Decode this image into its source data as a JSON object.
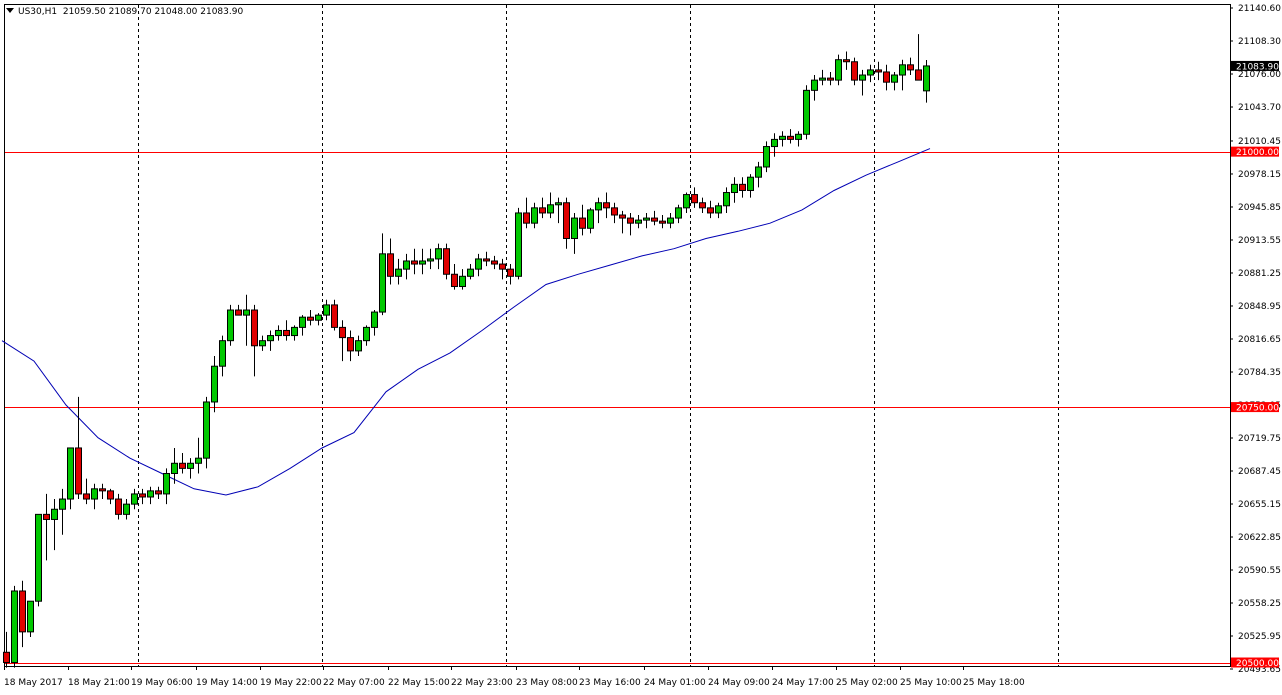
{
  "header": {
    "symbol": "US30,H1",
    "ohlc": "21059.50 21089.70 21048.00 21083.90"
  },
  "chart_data": {
    "type": "candlestick",
    "ylim": [
      20493.65,
      21140.6
    ],
    "grid": false,
    "y_ticks": [
      "21140.60",
      "21108.30",
      "21076.00",
      "21043.70",
      "21010.45",
      "20978.15",
      "20945.85",
      "20913.55",
      "20881.25",
      "20848.95",
      "20816.65",
      "20784.35",
      "20752.05",
      "20719.75",
      "20687.45",
      "20655.15",
      "20622.85",
      "20590.55",
      "20558.25",
      "20525.95",
      "20493.65"
    ],
    "x_labels": [
      "18 May 2017",
      "18 May 21:00",
      "19 May 06:00",
      "19 May 14:00",
      "19 May 22:00",
      "22 May 07:00",
      "22 May 15:00",
      "22 May 23:00",
      "23 May 08:00",
      "23 May 16:00",
      "24 May 01:00",
      "24 May 09:00",
      "24 May 17:00",
      "25 May 02:00",
      "25 May 10:00",
      "25 May 18:00"
    ],
    "horizontal_levels": [
      {
        "value": 21000.0,
        "label": "21000.00",
        "color": "#ff0000"
      },
      {
        "value": 20750.0,
        "label": "20750.00",
        "color": "#ff0000"
      },
      {
        "value": 20500.0,
        "label": "20500.00",
        "color": "#ff0000"
      }
    ],
    "current_price": {
      "value": 21083.9,
      "label": "21083.90"
    },
    "bull_color": "#00c800",
    "bear_color": "#e00000",
    "ma_color": "#0000b4",
    "candles": [
      [
        20510,
        20530,
        20495,
        20500
      ],
      [
        20500,
        20575,
        20495,
        20570
      ],
      [
        20570,
        20580,
        20515,
        20530
      ],
      [
        20530,
        20560,
        20525,
        20560
      ],
      [
        20560,
        20645,
        20555,
        20645
      ],
      [
        20645,
        20665,
        20600,
        20640
      ],
      [
        20640,
        20660,
        20610,
        20650
      ],
      [
        20650,
        20670,
        20625,
        20660
      ],
      [
        20660,
        20710,
        20650,
        20710
      ],
      [
        20710,
        20760,
        20660,
        20665
      ],
      [
        20665,
        20680,
        20655,
        20660
      ],
      [
        20660,
        20675,
        20650,
        20670
      ],
      [
        20670,
        20675,
        20660,
        20668
      ],
      [
        20668,
        20670,
        20655,
        20660
      ],
      [
        20660,
        20665,
        20640,
        20645
      ],
      [
        20645,
        20660,
        20640,
        20655
      ],
      [
        20655,
        20670,
        20650,
        20665
      ],
      [
        20665,
        20670,
        20655,
        20662
      ],
      [
        20662,
        20672,
        20655,
        20668
      ],
      [
        20668,
        20672,
        20660,
        20665
      ],
      [
        20665,
        20690,
        20655,
        20685
      ],
      [
        20685,
        20710,
        20675,
        20695
      ],
      [
        20695,
        20705,
        20685,
        20690
      ],
      [
        20690,
        20700,
        20680,
        20695
      ],
      [
        20695,
        20720,
        20685,
        20700
      ],
      [
        20700,
        20760,
        20690,
        20755
      ],
      [
        20755,
        20800,
        20745,
        20790
      ],
      [
        20790,
        20820,
        20780,
        20815
      ],
      [
        20815,
        20850,
        20810,
        20845
      ],
      [
        20845,
        20850,
        20840,
        20840
      ],
      [
        20840,
        20860,
        20810,
        20845
      ],
      [
        20845,
        20850,
        20780,
        20810
      ],
      [
        20810,
        20820,
        20805,
        20815
      ],
      [
        20815,
        20825,
        20805,
        20820
      ],
      [
        20820,
        20830,
        20815,
        20825
      ],
      [
        20825,
        20835,
        20815,
        20820
      ],
      [
        20820,
        20830,
        20815,
        20828
      ],
      [
        20828,
        20840,
        20820,
        20838
      ],
      [
        20838,
        20845,
        20830,
        20835
      ],
      [
        20835,
        20842,
        20830,
        20840
      ],
      [
        20840,
        20855,
        20835,
        20850
      ],
      [
        20850,
        20855,
        20825,
        20828
      ],
      [
        20828,
        20835,
        20795,
        20818
      ],
      [
        20818,
        20825,
        20795,
        20805
      ],
      [
        20805,
        20820,
        20800,
        20815
      ],
      [
        20815,
        20830,
        20810,
        20828
      ],
      [
        20828,
        20845,
        20820,
        20843
      ],
      [
        20843,
        20920,
        20840,
        20900
      ],
      [
        20900,
        20915,
        20870,
        20878
      ],
      [
        20878,
        20895,
        20870,
        20885
      ],
      [
        20885,
        20900,
        20875,
        20893
      ],
      [
        20893,
        20905,
        20880,
        20890
      ],
      [
        20890,
        20905,
        20880,
        20893
      ],
      [
        20893,
        20905,
        20885,
        20895
      ],
      [
        20895,
        20910,
        20885,
        20905
      ],
      [
        20905,
        20910,
        20875,
        20880
      ],
      [
        20880,
        20890,
        20865,
        20868
      ],
      [
        20868,
        20885,
        20865,
        20878
      ],
      [
        20878,
        20890,
        20875,
        20885
      ],
      [
        20885,
        20900,
        20878,
        20895
      ],
      [
        20895,
        20902,
        20888,
        20893
      ],
      [
        20893,
        20898,
        20885,
        20890
      ],
      [
        20890,
        20895,
        20875,
        20885
      ],
      [
        20885,
        20890,
        20870,
        20878
      ],
      [
        20878,
        20945,
        20875,
        20940
      ],
      [
        20940,
        20955,
        20925,
        20930
      ],
      [
        20930,
        20950,
        20925,
        20945
      ],
      [
        20945,
        20955,
        20935,
        20940
      ],
      [
        20940,
        20960,
        20935,
        20948
      ],
      [
        20948,
        20955,
        20930,
        20950
      ],
      [
        20950,
        20955,
        20905,
        20915
      ],
      [
        20915,
        20940,
        20900,
        20935
      ],
      [
        20935,
        20948,
        20918,
        20925
      ],
      [
        20925,
        20945,
        20920,
        20943
      ],
      [
        20943,
        20955,
        20930,
        20950
      ],
      [
        20950,
        20960,
        20935,
        20945
      ],
      [
        20945,
        20950,
        20930,
        20938
      ],
      [
        20938,
        20942,
        20920,
        20935
      ],
      [
        20935,
        20940,
        20918,
        20930
      ],
      [
        20930,
        20938,
        20925,
        20933
      ],
      [
        20933,
        20940,
        20925,
        20935
      ],
      [
        20935,
        20942,
        20928,
        20932
      ],
      [
        20932,
        20938,
        20925,
        20930
      ],
      [
        20930,
        20940,
        20925,
        20935
      ],
      [
        20935,
        20948,
        20930,
        20945
      ],
      [
        20945,
        20960,
        20940,
        20958
      ],
      [
        20958,
        20965,
        20945,
        20950
      ],
      [
        20950,
        20955,
        20940,
        20945
      ],
      [
        20945,
        20952,
        20935,
        20940
      ],
      [
        20940,
        20950,
        20935,
        20947
      ],
      [
        20947,
        20965,
        20940,
        20960
      ],
      [
        20960,
        20975,
        20950,
        20968
      ],
      [
        20968,
        20975,
        20955,
        20962
      ],
      [
        20962,
        20978,
        20955,
        20975
      ],
      [
        20975,
        20990,
        20965,
        20985
      ],
      [
        20985,
        21010,
        20980,
        21005
      ],
      [
        21005,
        21018,
        20995,
        21012
      ],
      [
        21012,
        21020,
        21005,
        21015
      ],
      [
        21015,
        21022,
        21008,
        21012
      ],
      [
        21012,
        21020,
        21005,
        21017
      ],
      [
        21017,
        21065,
        21012,
        21060
      ],
      [
        21060,
        21075,
        21050,
        21070
      ],
      [
        21070,
        21080,
        21065,
        21072
      ],
      [
        21072,
        21078,
        21065,
        21070
      ],
      [
        21070,
        21095,
        21065,
        21090
      ],
      [
        21090,
        21098,
        21080,
        21088
      ],
      [
        21088,
        21092,
        21065,
        21070
      ],
      [
        21070,
        21080,
        21055,
        21075
      ],
      [
        21075,
        21085,
        21068,
        21080
      ],
      [
        21080,
        21088,
        21070,
        21078
      ],
      [
        21078,
        21085,
        21060,
        21068
      ],
      [
        21068,
        21078,
        21060,
        21075
      ],
      [
        21075,
        21090,
        21060,
        21085
      ],
      [
        21085,
        21092,
        21075,
        21080
      ],
      [
        21080,
        21115,
        21070,
        21070
      ],
      [
        21059.5,
        21089.7,
        21048,
        21083.9
      ]
    ],
    "ma": [
      [
        -0.5,
        20815
      ],
      [
        3.5,
        20795
      ],
      [
        7.5,
        20752
      ],
      [
        11.5,
        20720
      ],
      [
        15.5,
        20700
      ],
      [
        19.5,
        20685
      ],
      [
        23.5,
        20670
      ],
      [
        27.5,
        20664
      ],
      [
        31.5,
        20672
      ],
      [
        35.5,
        20690
      ],
      [
        39.5,
        20710
      ],
      [
        43.5,
        20725
      ],
      [
        47.5,
        20765
      ],
      [
        51.5,
        20787
      ],
      [
        55.5,
        20803
      ],
      [
        59.5,
        20825
      ],
      [
        63.5,
        20848
      ],
      [
        67.5,
        20870
      ],
      [
        71.5,
        20880
      ],
      [
        75.5,
        20889
      ],
      [
        79.5,
        20898
      ],
      [
        83.5,
        20905
      ],
      [
        87.5,
        20915
      ],
      [
        91.5,
        20922
      ],
      [
        95.5,
        20930
      ],
      [
        99.5,
        20943
      ],
      [
        103.5,
        20962
      ],
      [
        107.5,
        20977
      ],
      [
        111.5,
        20990
      ],
      [
        115.5,
        21003
      ]
    ]
  }
}
